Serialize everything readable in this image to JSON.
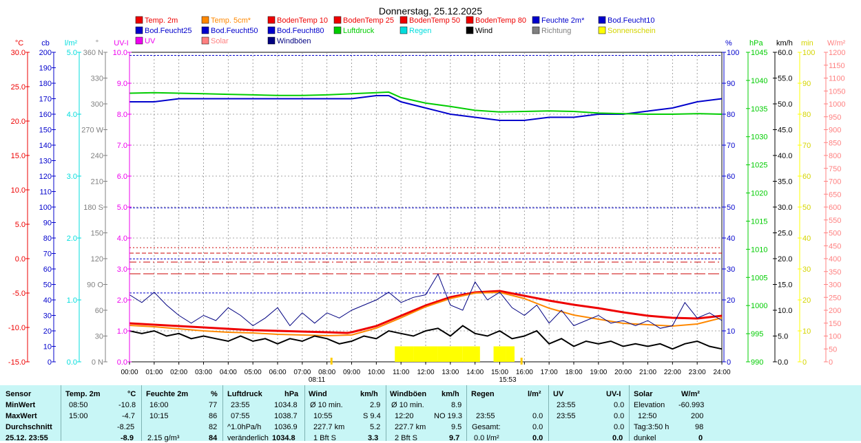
{
  "title": "Donnerstag, 25.12.2025",
  "legend": [
    {
      "label": "Temp. 2m",
      "color": "#ee0000"
    },
    {
      "label": "Temp. 5cm*",
      "color": "#ff8800"
    },
    {
      "label": "BodenTemp 10",
      "color": "#ee0000"
    },
    {
      "label": "BodenTemp 25",
      "color": "#ee0000"
    },
    {
      "label": "BodenTemp 50",
      "color": "#ee0000"
    },
    {
      "label": "BodenTemp 80",
      "color": "#ee0000"
    },
    {
      "label": "Feuchte 2m*",
      "color": "#0000cc"
    },
    {
      "label": "Bod.Feucht10",
      "color": "#0000cc"
    },
    {
      "label": "Bod.Feucht25",
      "color": "#0000cc"
    },
    {
      "label": "Bod.Feucht50",
      "color": "#0000cc"
    },
    {
      "label": "Bod.Feucht80",
      "color": "#0000cc"
    },
    {
      "label": "Luftdruck",
      "color": "#00cc00"
    },
    {
      "label": "Regen",
      "color": "#00dddd"
    },
    {
      "label": "Wind",
      "color": "#000000"
    },
    {
      "label": "Richtung",
      "color": "#808080"
    },
    {
      "label": "Sonnenschein",
      "color": "#ffff00"
    },
    {
      "label": "UV",
      "color": "#ee00ee"
    },
    {
      "label": "Solar",
      "color": "#ff8080"
    },
    {
      "label": "Windböen",
      "color": "#000080"
    }
  ],
  "chart_data": {
    "type": "line",
    "title": "Donnerstag, 25.12.2025",
    "x_ticks": [
      "00:00",
      "01:00",
      "02:00",
      "03:00",
      "04:00",
      "05:00",
      "06:00",
      "07:00",
      "08:00",
      "09:00",
      "10:00",
      "11:00",
      "12:00",
      "13:00",
      "14:00",
      "15:00",
      "16:00",
      "17:00",
      "18:00",
      "19:00",
      "20:00",
      "21:00",
      "22:00",
      "23:00",
      "24:00"
    ],
    "x_range_hours": [
      0,
      24
    ],
    "sunrise": "08:11",
    "sunset": "15:53",
    "grid": true,
    "axes": [
      {
        "unit": "°C",
        "color": "#ee0000",
        "min": -15,
        "max": 30,
        "ticks": [
          "30.0",
          "25.0",
          "20.0",
          "15.0",
          "10.0",
          "5.0",
          "0.0",
          "-5.0",
          "-10.0",
          "-15.0"
        ]
      },
      {
        "unit": "cb",
        "color": "#0000cc",
        "min": 0,
        "max": 200,
        "ticks": [
          "200",
          "190",
          "180",
          "170",
          "160",
          "150",
          "140",
          "130",
          "120",
          "110",
          "100",
          "90",
          "80",
          "70",
          "60",
          "50",
          "40",
          "30",
          "20",
          "10",
          "0"
        ]
      },
      {
        "unit": "l/m²",
        "color": "#00dddd",
        "min": 0,
        "max": 5,
        "ticks": [
          "5.0",
          "4.0",
          "3.0",
          "2.0",
          "1.0",
          "0.0"
        ]
      },
      {
        "unit": "°",
        "color": "#808080",
        "min": 0,
        "max": 360,
        "ticks": [
          "360 N",
          "330",
          "300",
          "270 W",
          "240",
          "210",
          "180 S",
          "150",
          "120",
          "90 O",
          "60",
          "30",
          "0 N"
        ]
      },
      {
        "unit": "UV-I",
        "color": "#ee00ee",
        "min": 0,
        "max": 10,
        "ticks": [
          "10.0",
          "9.0",
          "8.0",
          "7.0",
          "6.0",
          "5.0",
          "4.0",
          "3.0",
          "2.0",
          "1.0",
          "0.0"
        ]
      },
      {
        "unit": "%",
        "color": "#0000cc",
        "min": 0,
        "max": 100,
        "ticks": [
          "100",
          "90",
          "80",
          "70",
          "60",
          "50",
          "40",
          "30",
          "20",
          "10",
          "0"
        ]
      },
      {
        "unit": "hPa",
        "color": "#00cc00",
        "min": 990,
        "max": 1046,
        "ticks": [
          "1045",
          "1040",
          "1035",
          "1030",
          "1025",
          "1020",
          "1015",
          "1010",
          "1005",
          "1000",
          "995",
          "990"
        ]
      },
      {
        "unit": "km/h",
        "color": "#000000",
        "min": 0,
        "max": 60,
        "ticks": [
          "60.0",
          "55.0",
          "50.0",
          "45.0",
          "40.0",
          "35.0",
          "30.0",
          "25.0",
          "20.0",
          "15.0",
          "10.0",
          "5.0",
          "0.0"
        ]
      },
      {
        "unit": "min",
        "color": "#ffff00",
        "min": 0,
        "max": 100,
        "ticks": [
          "100",
          "90",
          "80",
          "70",
          "60",
          "50",
          "40",
          "30",
          "20",
          "10",
          "0"
        ]
      },
      {
        "unit": "W/m²",
        "color": "#ff8080",
        "min": 0,
        "max": 1200,
        "ticks": [
          "1200",
          "1150",
          "1100",
          "1050",
          "1000",
          "950",
          "900",
          "850",
          "800",
          "750",
          "700",
          "650",
          "600",
          "550",
          "500",
          "450",
          "400",
          "350",
          "300",
          "250",
          "200",
          "150",
          "100",
          "50",
          "0"
        ]
      }
    ],
    "series": [
      {
        "name": "Temp. 2m",
        "axis": "°C",
        "color": "#ee0000",
        "x": [
          0,
          1,
          2,
          3,
          4,
          5,
          6,
          7,
          8,
          8.83,
          9,
          10,
          11,
          12,
          13,
          14,
          15,
          16,
          17,
          18,
          19,
          20,
          21,
          22,
          23,
          24
        ],
        "y": [
          -9.4,
          -9.6,
          -9.8,
          -10.0,
          -10.2,
          -10.4,
          -10.5,
          -10.6,
          -10.7,
          -10.8,
          -10.7,
          -9.8,
          -8.3,
          -6.8,
          -5.6,
          -4.9,
          -4.7,
          -5.4,
          -6.1,
          -6.7,
          -7.2,
          -7.8,
          -8.3,
          -8.6,
          -8.7,
          -8.3
        ]
      },
      {
        "name": "Temp. 5cm*",
        "axis": "°C",
        "color": "#ff8800",
        "x": [
          0,
          1,
          2,
          3,
          4,
          5,
          6,
          7,
          8,
          9,
          10,
          11,
          12,
          13,
          14,
          15,
          16,
          17,
          18,
          19,
          20,
          21,
          22,
          23,
          24
        ],
        "y": [
          -9.7,
          -9.9,
          -10.2,
          -10.5,
          -10.7,
          -10.8,
          -11.0,
          -11.1,
          -11.2,
          -11.1,
          -10.1,
          -8.6,
          -7.0,
          -5.8,
          -5.0,
          -4.9,
          -5.8,
          -7.2,
          -8.2,
          -8.8,
          -9.4,
          -9.6,
          -9.8,
          -9.5,
          -8.6
        ]
      },
      {
        "name": "Feuchte 2m*",
        "axis": "%",
        "color": "#0000cc",
        "x": [
          0,
          1,
          2,
          3,
          4,
          5,
          6,
          7,
          8,
          9,
          10,
          10.5,
          11,
          12,
          13,
          14,
          15,
          16,
          17,
          18,
          19,
          20,
          21,
          22,
          23,
          24
        ],
        "y": [
          84,
          84,
          85,
          85,
          85,
          85,
          85,
          85,
          85,
          85,
          86,
          86,
          84,
          82,
          80,
          79,
          78,
          78,
          79,
          79,
          80,
          80,
          81,
          82,
          84,
          85
        ]
      },
      {
        "name": "Luftdruck",
        "axis": "hPa",
        "color": "#00cc00",
        "x": [
          0,
          1,
          2,
          3,
          4,
          5,
          6,
          7,
          8,
          9,
          10,
          10.5,
          11,
          12,
          13,
          14,
          15,
          16,
          17,
          18,
          19,
          20,
          21,
          22,
          23,
          24
        ],
        "y": [
          1038.6,
          1038.7,
          1038.6,
          1038.5,
          1038.4,
          1038.3,
          1038.2,
          1038.2,
          1038.3,
          1038.5,
          1038.7,
          1038.8,
          1037.8,
          1036.8,
          1036.2,
          1035.5,
          1035.2,
          1035.3,
          1035.4,
          1035.3,
          1035.0,
          1034.9,
          1034.8,
          1034.8,
          1034.9,
          1034.8
        ]
      },
      {
        "name": "Wind",
        "axis": "km/h",
        "color": "#000000",
        "x": [
          0,
          0.5,
          1,
          1.5,
          2,
          2.5,
          3,
          3.5,
          4,
          4.5,
          5,
          5.5,
          6,
          6.5,
          7,
          7.5,
          8,
          8.5,
          9,
          9.5,
          10,
          10.5,
          11,
          11.5,
          12,
          12.5,
          13,
          13.5,
          14,
          14.5,
          15,
          15.5,
          16,
          16.5,
          17,
          17.5,
          18,
          18.5,
          19,
          19.5,
          20,
          20.5,
          21,
          21.5,
          22,
          22.5,
          23,
          23.5,
          24
        ],
        "y": [
          6.0,
          5.5,
          6.0,
          5.0,
          5.5,
          4.5,
          5.0,
          4.5,
          4.0,
          5.0,
          4.0,
          4.5,
          3.5,
          4.5,
          4.0,
          5.0,
          4.5,
          3.5,
          4.0,
          5.0,
          4.5,
          6.0,
          5.5,
          5.0,
          6.0,
          6.5,
          5.0,
          7.0,
          5.5,
          5.0,
          6.0,
          4.5,
          5.0,
          6.0,
          3.5,
          4.5,
          3.0,
          4.0,
          3.5,
          4.0,
          3.0,
          3.5,
          3.0,
          3.5,
          2.5,
          3.5,
          4.0,
          3.0,
          2.5
        ]
      },
      {
        "name": "Windböen",
        "axis": "km/h",
        "color": "#000080",
        "x": [
          0,
          0.5,
          1,
          1.5,
          2,
          2.5,
          3,
          3.5,
          4,
          4.5,
          5,
          5.5,
          6,
          6.5,
          7,
          7.5,
          8,
          8.5,
          9,
          9.5,
          10,
          10.5,
          11,
          11.5,
          12,
          12.5,
          13,
          13.5,
          14,
          14.5,
          15,
          15.5,
          16,
          16.5,
          17,
          17.5,
          18,
          18.5,
          19,
          19.5,
          20,
          20.5,
          21,
          21.5,
          22,
          22.5,
          23,
          23.5,
          24
        ],
        "y": [
          13.0,
          11.5,
          13.5,
          11.0,
          9.0,
          7.5,
          9.0,
          8.0,
          10.5,
          9.0,
          7.0,
          8.5,
          10.5,
          7.0,
          9.5,
          7.5,
          9.5,
          8.5,
          10.0,
          11.0,
          12.0,
          13.5,
          11.5,
          12.5,
          13.0,
          17.0,
          11.0,
          10.0,
          15.5,
          12.0,
          13.5,
          10.5,
          9.0,
          11.0,
          7.5,
          10.0,
          7.0,
          8.0,
          9.0,
          7.5,
          8.0,
          7.0,
          8.0,
          6.5,
          7.0,
          11.5,
          8.5,
          9.5,
          8.0
        ]
      },
      {
        "name": "Sonnenschein",
        "axis": "min",
        "color": "#ffff00",
        "x": [
          10.75,
          11.5,
          12.5,
          13.5,
          14.2,
          14.75,
          15.25,
          15.6
        ],
        "y": [
          5,
          5,
          5,
          5,
          0,
          5,
          5,
          0
        ]
      }
    ],
    "soil_temps": [
      {
        "name": "BodenTemp 10",
        "axis": "°C",
        "y": -2.2
      },
      {
        "name": "BodenTemp 25",
        "axis": "°C",
        "y": -0.5
      },
      {
        "name": "BodenTemp 50",
        "axis": "°C",
        "y": 0.8
      },
      {
        "name": "BodenTemp 80",
        "axis": "°C",
        "y": 1.6
      }
    ],
    "soil_moisture": [
      {
        "name": "Bod.Feucht10",
        "axis": "cb",
        "y": 44.5
      },
      {
        "name": "Bod.Feucht25",
        "axis": "cb",
        "y": 66.5
      },
      {
        "name": "Bod.Feucht50",
        "axis": "cb",
        "y": 99.5
      },
      {
        "name": "Bod.Feucht80",
        "axis": "cb",
        "y": 198
      }
    ]
  },
  "stats": {
    "row_labels": [
      "Sensor",
      "MinWert",
      "MaxWert",
      "Durchschnitt",
      "25.12. 23:55"
    ],
    "temp": {
      "header": "Temp. 2m",
      "unit": "°C",
      "min_time": "08:50",
      "min": "-10.8",
      "max_time": "15:00",
      "max": "-4.7",
      "avg": "-8.25",
      "current": "-8.9"
    },
    "hum": {
      "header": "Feuchte 2m",
      "unit": "%",
      "min_time": "16:00",
      "min": "77",
      "max_time": "10:15",
      "max": "86",
      "avg": "82",
      "extra": "2.15 g/m³",
      "current": "84"
    },
    "press": {
      "header": "Luftdruck",
      "unit": "hPa",
      "min_time": "23:55",
      "min": "1034.8",
      "max_time": "07:55",
      "max": "1038.7",
      "avg_label": "^1.0hPa/h",
      "avg": "1036.9",
      "cur_label": "veränderlich",
      "current": "1034.8"
    },
    "wind": {
      "header": "Wind",
      "unit": "km/h",
      "r1_label": "Ø 10 min.",
      "r1": "2.9",
      "r2_time": "10:55",
      "r2": "S 9.4",
      "r3_label": "227.7 km",
      "r3": "5.2",
      "r4_label": "1 Bft S",
      "current": "3.3"
    },
    "gust": {
      "header": "Windböen",
      "unit": "km/h",
      "r1_label": "Ø 10 min.",
      "r1": "8.9",
      "r2_time": "12:20",
      "r2": "NO 19.3",
      "r3_label": "227.7 km",
      "r3": "9.5",
      "r4_label": "2 Bft S",
      "current": "9.7"
    },
    "rain": {
      "header": "Regen",
      "unit": "l/m²",
      "r2_time": "23:55",
      "r2": "0.0",
      "r3_label": "Gesamt:",
      "r3": "0.0",
      "r4_label": "0.0 l/m²",
      "current": "0.0"
    },
    "uv": {
      "header": "UV",
      "unit": "UV-I",
      "r1_time": "23:55",
      "r1": "0.0",
      "r2_time": "23:55",
      "r2": "0.0",
      "r3": "0.0",
      "current": "0.0"
    },
    "solar": {
      "header": "Solar",
      "unit": "W/m²",
      "r1_label": "Elevation",
      "r1": "-60.993",
      "r2_time": "12:50",
      "r2": "200",
      "r3_label": "Tag:3:50 h",
      "r3": "98",
      "r4_label": "dunkel",
      "current": "0"
    }
  }
}
